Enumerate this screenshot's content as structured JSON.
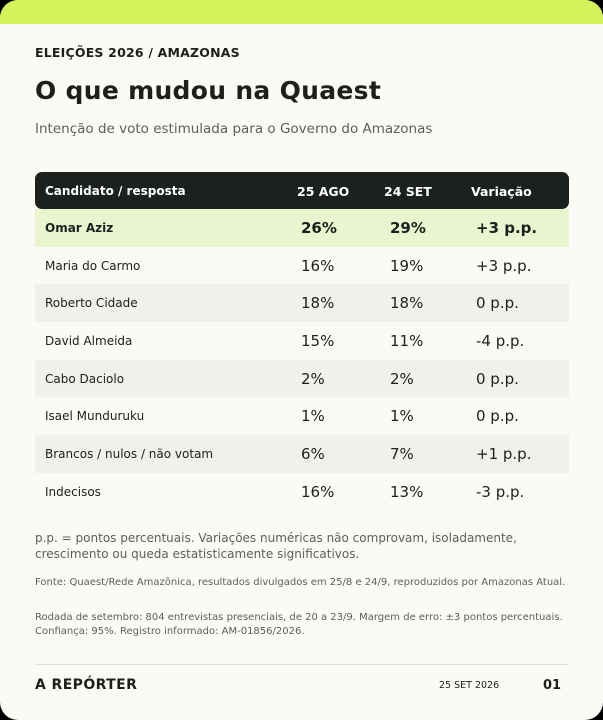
{
  "colors": {
    "accent": "#d6f25a",
    "header_bg": "#1c211e",
    "highlight_row": "#eaf5d0",
    "alt_row": "#f0f1ec"
  },
  "kicker": "ELEIÇÕES 2026  /  AMAZONAS",
  "title": "O que mudou na Quaest",
  "subtitle": "Intenção de voto estimulada para o Governo do Amazonas",
  "table": {
    "headers": {
      "candidate": "Candidato / resposta",
      "aug": "25 AGO",
      "sep": "24 SET",
      "change": "Variação"
    },
    "rows": [
      {
        "name": "Omar Aziz",
        "aug": "26%",
        "sep": "29%",
        "change": "+3 p.p."
      },
      {
        "name": "Maria do Carmo",
        "aug": "16%",
        "sep": "19%",
        "change": "+3 p.p."
      },
      {
        "name": "Roberto Cidade",
        "aug": "18%",
        "sep": "18%",
        "change": "0 p.p."
      },
      {
        "name": "David Almeida",
        "aug": "15%",
        "sep": "11%",
        "change": "-4 p.p."
      },
      {
        "name": "Cabo Daciolo",
        "aug": "2%",
        "sep": "2%",
        "change": "0 p.p."
      },
      {
        "name": "Isael Munduruku",
        "aug": "1%",
        "sep": "1%",
        "change": "0 p.p."
      },
      {
        "name": "Brancos / nulos / não votam",
        "aug": "6%",
        "sep": "7%",
        "change": "+1 p.p."
      },
      {
        "name": "Indecisos",
        "aug": "16%",
        "sep": "13%",
        "change": "-3 p.p."
      }
    ]
  },
  "note": "p.p. = pontos percentuais. Variações numéricas não comprovam, isoladamente, crescimento ou queda estatisticamente significativos.",
  "source": "Fonte: Quaest/Rede Amazônica, resultados divulgados em 25/8 e 24/9, reproduzidos por Amazonas Atual.",
  "method": "Rodada de setembro: 804 entrevistas presenciais, de 20 a 23/9. Margem de erro: ±3 pontos percentuais. Confiança: 95%. Registro informado: AM-01856/2026.",
  "footer": {
    "brand": "A REPÓRTER",
    "date": "25 SET 2026",
    "page": "01"
  }
}
